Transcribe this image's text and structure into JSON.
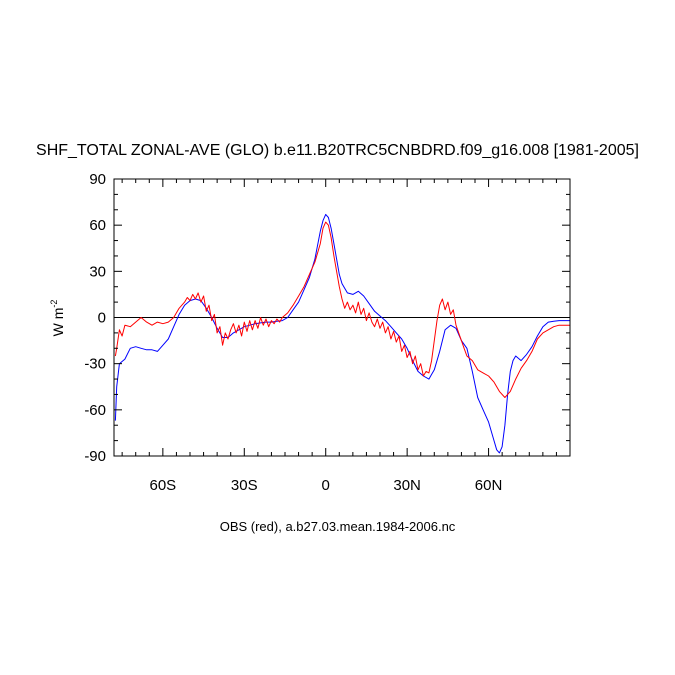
{
  "chart_data": {
    "type": "line",
    "title": "SHF_TOTAL ZONAL-AVE (GLO) b.e11.B20TRC5CNBDRD.f09_g16.008 [1981-2005]",
    "ylabel_base": "W m",
    "ylabel_exp": "-2",
    "footer": "OBS (red), a.b27.03.mean.1984-2006.nc",
    "xlim": [
      -78,
      90
    ],
    "ylim": [
      -90,
      90
    ],
    "x_ticks": [
      {
        "value": -60,
        "label": "60S"
      },
      {
        "value": -30,
        "label": "30S"
      },
      {
        "value": 0,
        "label": "0"
      },
      {
        "value": 30,
        "label": "30N"
      },
      {
        "value": 60,
        "label": "60N"
      }
    ],
    "y_ticks": [
      {
        "value": 90,
        "label": "90"
      },
      {
        "value": 60,
        "label": "60"
      },
      {
        "value": 30,
        "label": "30"
      },
      {
        "value": 0,
        "label": "0"
      },
      {
        "value": -30,
        "label": "-30"
      },
      {
        "value": -60,
        "label": "-60"
      },
      {
        "value": -90,
        "label": "-90"
      }
    ],
    "zero_line": true,
    "series": [
      {
        "color": "#0000ff",
        "x": [
          -77.5,
          -77,
          -76,
          -74,
          -72,
          -70,
          -68,
          -66,
          -64,
          -62,
          -60,
          -58,
          -56,
          -54,
          -52,
          -50,
          -48,
          -46,
          -44,
          -42,
          -40,
          -38,
          -36,
          -34,
          -32,
          -30,
          -28,
          -26,
          -24,
          -22,
          -20,
          -18,
          -16,
          -14,
          -12,
          -10,
          -8,
          -6,
          -4,
          -2,
          -1,
          0,
          1,
          2,
          3,
          4,
          5,
          6,
          8,
          10,
          12,
          14,
          16,
          18,
          20,
          22,
          24,
          26,
          28,
          30,
          32,
          34,
          36,
          38,
          39,
          40,
          42,
          44,
          46,
          48,
          50,
          52,
          54,
          56,
          58,
          60,
          62,
          63,
          64,
          65,
          66,
          67,
          68,
          69,
          70,
          72,
          74,
          76,
          78,
          80,
          82,
          84,
          86,
          88,
          90
        ],
        "y": [
          -67,
          -45,
          -30,
          -27,
          -20,
          -19,
          -20,
          -21,
          -21,
          -22,
          -18,
          -14,
          -6,
          2,
          8,
          11,
          12,
          11,
          6,
          0,
          -7,
          -13,
          -13,
          -10,
          -8,
          -6,
          -5,
          -4,
          -3.5,
          -3,
          -3,
          -2.5,
          -2,
          0,
          5,
          10,
          18,
          26,
          38,
          56,
          63,
          67,
          65,
          58,
          48,
          38,
          28,
          22,
          16,
          15,
          17,
          14,
          9,
          4,
          1,
          -2,
          -6,
          -10,
          -14,
          -20,
          -28,
          -35,
          -38,
          -40,
          -37,
          -34,
          -22,
          -8,
          -5,
          -7,
          -15,
          -20,
          -35,
          -52,
          -60,
          -68,
          -80,
          -86,
          -88,
          -84,
          -70,
          -50,
          -35,
          -28,
          -25,
          -28,
          -24,
          -19,
          -12,
          -6,
          -3,
          -2.5,
          -2,
          -2,
          -2
        ]
      },
      {
        "color": "#ff0000",
        "x": [
          -77.5,
          -77,
          -76,
          -75,
          -74,
          -72,
          -70,
          -68,
          -66,
          -64,
          -62,
          -60,
          -58,
          -56,
          -54,
          -52,
          -51,
          -50,
          -49,
          -48,
          -47,
          -46,
          -45,
          -44,
          -43,
          -42,
          -41,
          -40,
          -39,
          -38,
          -37,
          -36,
          -35,
          -34,
          -33,
          -32,
          -31,
          -30,
          -29,
          -28,
          -27,
          -26,
          -25,
          -24,
          -23,
          -22,
          -21,
          -20,
          -19,
          -18,
          -17,
          -16,
          -14,
          -12,
          -10,
          -8,
          -6,
          -4,
          -2,
          -1,
          0,
          1,
          2,
          3,
          4,
          5,
          6,
          7,
          8,
          9,
          10,
          11,
          12,
          13,
          14,
          15,
          16,
          17,
          18,
          19,
          20,
          21,
          22,
          23,
          24,
          25,
          26,
          27,
          28,
          29,
          30,
          31,
          32,
          33,
          34,
          35,
          36,
          37,
          38,
          39,
          40,
          41,
          42,
          43,
          44,
          45,
          46,
          47,
          48,
          49,
          50,
          51,
          52,
          54,
          56,
          58,
          60,
          62,
          64,
          66,
          68,
          70,
          72,
          74,
          76,
          78,
          80,
          82,
          84,
          86,
          88,
          90
        ],
        "y": [
          -25,
          -20,
          -8,
          -12,
          -5,
          -6,
          -3,
          0,
          -3,
          -5,
          -3,
          -4,
          -3,
          0,
          6,
          10,
          13,
          11,
          15,
          12,
          16,
          10,
          14,
          4,
          8,
          -2,
          2,
          -10,
          -6,
          -18,
          -10,
          -14,
          -8,
          -4,
          -10,
          -5,
          -12,
          -3,
          -9,
          -2,
          -8,
          -2,
          -7,
          0,
          -5,
          -1,
          -6,
          -2,
          -4,
          -1,
          -3,
          0,
          3,
          8,
          14,
          20,
          28,
          36,
          48,
          58,
          62,
          60,
          52,
          40,
          30,
          20,
          12,
          6,
          10,
          5,
          8,
          3,
          10,
          2,
          6,
          -2,
          3,
          -3,
          -6,
          -1,
          -7,
          -3,
          -10,
          -6,
          -14,
          -9,
          -16,
          -12,
          -22,
          -18,
          -26,
          -22,
          -30,
          -25,
          -34,
          -30,
          -38,
          -35,
          -36,
          -28,
          -15,
          -2,
          8,
          12,
          5,
          10,
          2,
          5,
          -5,
          -10,
          -15,
          -20,
          -25,
          -28,
          -34,
          -36,
          -38,
          -42,
          -48,
          -52,
          -48,
          -40,
          -33,
          -28,
          -22,
          -14,
          -10,
          -8,
          -6,
          -5,
          -5,
          -5
        ]
      }
    ]
  }
}
